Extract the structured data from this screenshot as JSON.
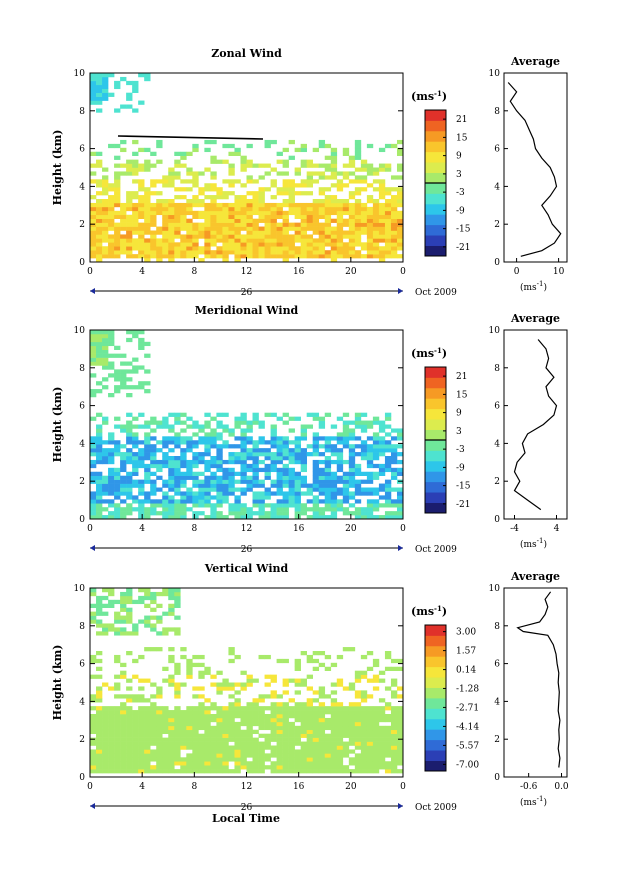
{
  "colors": {
    "scale": [
      "#1b1d6e",
      "#2b3fb5",
      "#2f6bd6",
      "#3096e8",
      "#2dc6ea",
      "#4ee3d0",
      "#6fe79a",
      "#a8ea6a",
      "#dcec4e",
      "#f6e63a",
      "#f9c52c",
      "#f69a24",
      "#ef6422",
      "#e0312a"
    ],
    "line": "#000000"
  },
  "figure": {
    "xlabel": "Local Time",
    "date_label": "Oct 2009",
    "day_label": "26",
    "unit_label": "(ms",
    "unit_exp": "-1",
    "ylabel": "Height (km)"
  },
  "chart_data": [
    {
      "type": "heatmap",
      "title": "Zonal Wind",
      "xlabel": "Local Time",
      "ylabel": "Height (km)",
      "x_ticks": [
        "0",
        "4",
        "8",
        "12",
        "16",
        "20",
        "0"
      ],
      "x_range_hours": [
        0,
        24
      ],
      "y_ticks": [
        "0",
        "2",
        "4",
        "6",
        "8",
        "10"
      ],
      "ylim": [
        0,
        10
      ],
      "colorbar": {
        "unit": "(ms-1)",
        "ticks": [
          "21",
          "15",
          "9",
          "3",
          "-3",
          "-9",
          "-15",
          "-21"
        ],
        "range": [
          -24,
          24
        ]
      },
      "average_profile": {
        "title": "Average",
        "xlabel": "(ms-1)",
        "x_ticks": [
          "0",
          "10"
        ],
        "xlim": [
          -3,
          12
        ],
        "ylim": [
          0,
          10
        ],
        "height_km": [
          0.3,
          0.6,
          1.0,
          1.5,
          2.0,
          2.5,
          3.0,
          3.5,
          4.0,
          4.5,
          5.0,
          5.5,
          6.0,
          6.5,
          7.0,
          7.5,
          8.0,
          8.5,
          9.0,
          9.5
        ],
        "value_ms": [
          1.0,
          6.0,
          9.0,
          10.5,
          8.5,
          7.5,
          6.0,
          8.0,
          9.5,
          9.0,
          8.0,
          6.0,
          4.5,
          4.0,
          3.0,
          2.0,
          0.0,
          -1.5,
          0.0,
          -2.0
        ]
      }
    },
    {
      "type": "heatmap",
      "title": "Meridional Wind",
      "xlabel": "Local Time",
      "ylabel": "Height (km)",
      "x_ticks": [
        "0",
        "4",
        "8",
        "12",
        "16",
        "20",
        "0"
      ],
      "x_range_hours": [
        0,
        24
      ],
      "y_ticks": [
        "0",
        "2",
        "4",
        "6",
        "8",
        "10"
      ],
      "ylim": [
        0,
        10
      ],
      "colorbar": {
        "unit": "(ms-1)",
        "ticks": [
          "21",
          "15",
          "9",
          "3",
          "-3",
          "-9",
          "-15",
          "-21"
        ],
        "range": [
          -24,
          24
        ]
      },
      "average_profile": {
        "title": "Average",
        "xlabel": "(ms-1)",
        "x_ticks": [
          "-4",
          "4"
        ],
        "xlim": [
          -6,
          6
        ],
        "ylim": [
          0,
          10
        ],
        "height_km": [
          0.5,
          1.0,
          1.5,
          2.0,
          2.5,
          3.0,
          3.5,
          4.0,
          4.5,
          5.0,
          5.5,
          6.0,
          6.5,
          7.0,
          7.5,
          8.0,
          8.5,
          9.0,
          9.5
        ],
        "value_ms": [
          1.0,
          -1.5,
          -4.0,
          -3.0,
          -4.0,
          -3.5,
          -2.0,
          -2.5,
          -1.5,
          1.5,
          3.5,
          4.0,
          2.5,
          2.0,
          3.5,
          2.0,
          2.5,
          2.0,
          0.5
        ]
      }
    },
    {
      "type": "heatmap",
      "title": "Vertical Wind",
      "xlabel": "Local Time",
      "ylabel": "Height (km)",
      "x_ticks": [
        "0",
        "4",
        "8",
        "12",
        "16",
        "20",
        "0"
      ],
      "x_range_hours": [
        0,
        24
      ],
      "y_ticks": [
        "0",
        "2",
        "4",
        "6",
        "8",
        "10"
      ],
      "ylim": [
        0,
        10
      ],
      "colorbar": {
        "unit": "(ms-1)",
        "ticks": [
          "3.00",
          "1.57",
          "0.14",
          "-1.28",
          "-2.71",
          "-4.14",
          "-5.57",
          "-7.00"
        ],
        "range": [
          -7.5,
          3.5
        ]
      },
      "average_profile": {
        "title": "Average",
        "xlabel": "(ms-1)",
        "x_ticks": [
          "-0.6",
          "0.0"
        ],
        "xlim": [
          -1.05,
          0.1
        ],
        "ylim": [
          0,
          10
        ],
        "height_km": [
          0.5,
          1.0,
          1.5,
          2.0,
          2.5,
          3.0,
          3.5,
          4.0,
          4.5,
          5.0,
          5.5,
          6.0,
          6.5,
          7.0,
          7.5,
          7.7,
          7.9,
          8.2,
          8.6,
          9.0,
          9.4,
          9.8
        ],
        "value_ms": [
          -0.05,
          -0.03,
          -0.06,
          -0.04,
          -0.05,
          -0.03,
          -0.06,
          -0.05,
          -0.04,
          -0.06,
          -0.05,
          -0.08,
          -0.1,
          -0.15,
          -0.25,
          -0.7,
          -0.8,
          -0.4,
          -0.3,
          -0.25,
          -0.3,
          -0.2
        ]
      }
    }
  ]
}
